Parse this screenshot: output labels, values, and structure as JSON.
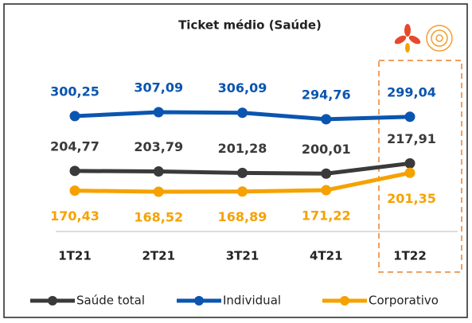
{
  "chart_data": {
    "type": "line",
    "title": "Ticket médio (Saúde)",
    "categories": [
      "1T21",
      "2T21",
      "3T21",
      "4T21",
      "1T22"
    ],
    "series": [
      {
        "name": "Saúde total",
        "color": "#3a3a3a",
        "values": [
          204.77,
          203.79,
          201.28,
          200.01,
          217.91
        ],
        "value_labels": [
          "204,77",
          "203,79",
          "201,28",
          "200,01",
          "217,91"
        ]
      },
      {
        "name": "Individual",
        "color": "#0b55b0",
        "values": [
          300.25,
          307.09,
          306.09,
          294.76,
          299.04
        ],
        "value_labels": [
          "300,25",
          "307,09",
          "306,09",
          "294,76",
          "299,04"
        ]
      },
      {
        "name": "Corporativo",
        "color": "#f5a200",
        "values": [
          170.43,
          168.52,
          168.89,
          171.22,
          201.35
        ],
        "value_labels": [
          "170,43",
          "168,52",
          "168,89",
          "171,22",
          "201,35"
        ]
      }
    ]
  }
}
